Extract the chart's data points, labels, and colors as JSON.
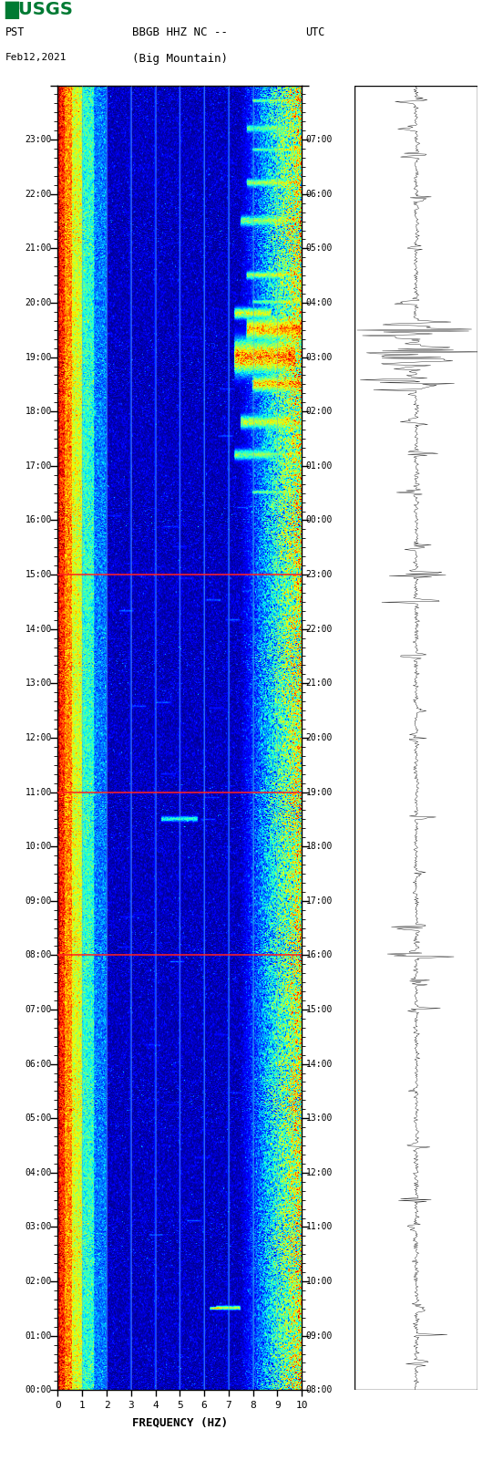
{
  "title_line1": "BBGB HHZ NC --",
  "title_line2": "(Big Mountain)",
  "date": "Feb12,2021",
  "tz_left": "PST",
  "tz_right": "UTC",
  "freq_min": 0,
  "freq_max": 10,
  "freq_label": "FREQUENCY (HZ)",
  "freq_ticks": [
    0,
    1,
    2,
    3,
    4,
    5,
    6,
    7,
    8,
    9,
    10
  ],
  "pst_times": [
    "00:00",
    "01:00",
    "02:00",
    "03:00",
    "04:00",
    "05:00",
    "06:00",
    "07:00",
    "08:00",
    "09:00",
    "10:00",
    "11:00",
    "12:00",
    "13:00",
    "14:00",
    "15:00",
    "16:00",
    "17:00",
    "18:00",
    "19:00",
    "20:00",
    "21:00",
    "22:00",
    "23:00"
  ],
  "utc_times": [
    "08:00",
    "09:00",
    "10:00",
    "11:00",
    "12:00",
    "13:00",
    "14:00",
    "15:00",
    "16:00",
    "17:00",
    "18:00",
    "19:00",
    "20:00",
    "21:00",
    "22:00",
    "23:00",
    "00:00",
    "01:00",
    "02:00",
    "03:00",
    "04:00",
    "05:00",
    "06:00",
    "07:00"
  ],
  "n_hours": 24,
  "n_freq_cols": 400,
  "minutes_per_hour": 60,
  "horizontal_line_times": [
    9.0,
    13.0,
    16.0
  ],
  "horizontal_line_color": "#FF2222",
  "grid_color": "#8899BB",
  "grid_alpha": 0.45,
  "usgs_green": "#007A33",
  "fig_width": 5.52,
  "fig_height": 16.13
}
